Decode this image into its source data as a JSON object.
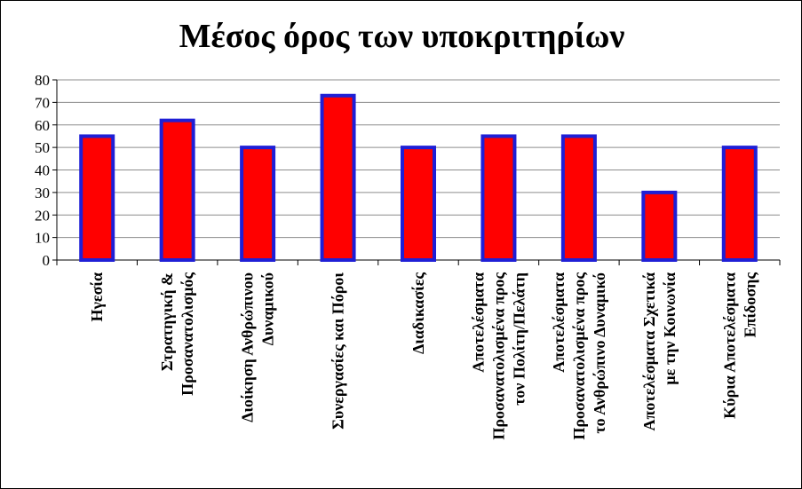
{
  "chart_data": {
    "type": "bar",
    "title": "Μέσος όρος των υποκριτηρίων",
    "xlabel": "",
    "ylabel": "",
    "ylim": [
      0,
      80
    ],
    "yticks": [
      0,
      10,
      20,
      30,
      40,
      50,
      60,
      70,
      80
    ],
    "grid": true,
    "legend": "none",
    "categories": [
      [
        "Ηγεσία"
      ],
      [
        "Στρατηγική &",
        "Προσανατολισμός"
      ],
      [
        "Διοίκηση Ανθρώπινου",
        "Δυναμικού"
      ],
      [
        "Συνεργασίες και Πόροι"
      ],
      [
        "Διαδικασίες"
      ],
      [
        "Αποτελέσματα",
        "Προσανατολισμένα προς",
        "τον Πολίτη/Πελάτη"
      ],
      [
        "Αποτελέσματα",
        "Προσανατολισμένα προς",
        "το Ανθρώπινο Δυναμικό"
      ],
      [
        "Αποτελέσματα Σχετικά",
        "με την Κοινωνία"
      ],
      [
        "Κύρια Αποτελέσματα",
        "Επίδοσης"
      ]
    ],
    "values": [
      55,
      62,
      50,
      73,
      50,
      55,
      55,
      30,
      50
    ],
    "colors": {
      "bar_fill": "#ff0000",
      "bar_stroke": "#1f1fd6",
      "grid": "#8c8c8c",
      "axis": "#000000"
    }
  }
}
